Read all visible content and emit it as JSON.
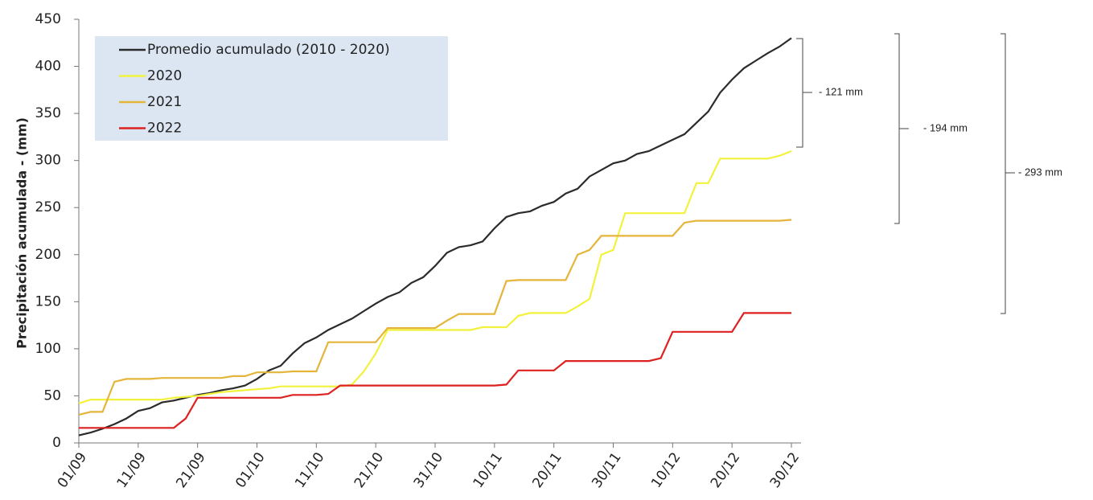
{
  "chart_data": {
    "type": "line",
    "y_label": "Precipitación acumulada - (mm)",
    "categories": [
      "01/09",
      null,
      null,
      null,
      null,
      "11/09",
      null,
      null,
      null,
      null,
      "21/09",
      null,
      null,
      null,
      null,
      "01/10",
      null,
      null,
      null,
      null,
      "11/10",
      null,
      null,
      null,
      null,
      "21/10",
      null,
      null,
      null,
      null,
      "31/10",
      null,
      null,
      null,
      null,
      "10/11",
      null,
      null,
      null,
      null,
      "20/11",
      null,
      null,
      null,
      null,
      "30/11",
      null,
      null,
      null,
      null,
      "10/12",
      null,
      null,
      null,
      null,
      "20/12",
      null,
      null,
      null,
      null,
      "30/12"
    ],
    "series": [
      {
        "name": "Promedio acumulado (2010 - 2020)",
        "color": "#2b2b2b",
        "values": [
          8,
          11,
          15,
          20,
          26,
          34,
          37,
          43,
          45,
          48,
          51,
          53,
          56,
          58,
          61,
          68,
          77,
          82,
          95,
          106,
          112,
          120,
          126,
          132,
          140,
          148,
          155,
          160,
          170,
          176,
          188,
          202,
          208,
          210,
          214,
          228,
          240,
          244,
          246,
          252,
          256,
          265,
          270,
          283,
          290,
          297,
          300,
          307,
          310,
          316,
          322,
          328,
          340,
          352,
          372,
          386,
          398,
          406,
          414,
          421,
          430
        ]
      },
      {
        "name": "2020",
        "color": "#f2f23c",
        "values": [
          42,
          46,
          46,
          46,
          46,
          46,
          46,
          46,
          48,
          49,
          50,
          52,
          54,
          55,
          56,
          57,
          58,
          60,
          60,
          60,
          60,
          60,
          60,
          62,
          76,
          95,
          120,
          120,
          120,
          120,
          120,
          120,
          120,
          120,
          123,
          123,
          123,
          135,
          138,
          138,
          138,
          138,
          145,
          153,
          200,
          205,
          244,
          244,
          244,
          244,
          244,
          244,
          276,
          276,
          302,
          302,
          302,
          302,
          302,
          305,
          310
        ]
      },
      {
        "name": "2021",
        "color": "#e4b53a",
        "values": [
          30,
          33,
          33,
          65,
          68,
          68,
          68,
          69,
          69,
          69,
          69,
          69,
          69,
          71,
          71,
          75,
          75,
          75,
          76,
          76,
          76,
          107,
          107,
          107,
          107,
          107,
          122,
          122,
          122,
          122,
          122,
          130,
          137,
          137,
          137,
          137,
          172,
          173,
          173,
          173,
          173,
          173,
          200,
          205,
          220,
          220,
          220,
          220,
          220,
          220,
          220,
          234,
          236,
          236,
          236,
          236,
          236,
          236,
          236,
          236,
          237
        ]
      },
      {
        "name": "2022",
        "color": "#dd2020",
        "values": [
          16,
          16,
          16,
          16,
          16,
          16,
          16,
          16,
          16,
          26,
          48,
          48,
          48,
          48,
          48,
          48,
          48,
          48,
          51,
          51,
          51,
          52,
          61,
          61,
          61,
          61,
          61,
          61,
          61,
          61,
          61,
          61,
          61,
          61,
          61,
          61,
          62,
          77,
          77,
          77,
          77,
          87,
          87,
          87,
          87,
          87,
          87,
          87,
          87,
          90,
          118,
          118,
          118,
          118,
          118,
          118,
          138,
          138,
          138,
          138,
          138
        ]
      }
    ],
    "ylim": [
      0,
      450
    ],
    "yticks": [
      0,
      50,
      100,
      150,
      200,
      250,
      300,
      350,
      400,
      450
    ],
    "annotations": [
      "- 121 mm",
      "- 194 mm",
      "- 293 mm"
    ]
  }
}
